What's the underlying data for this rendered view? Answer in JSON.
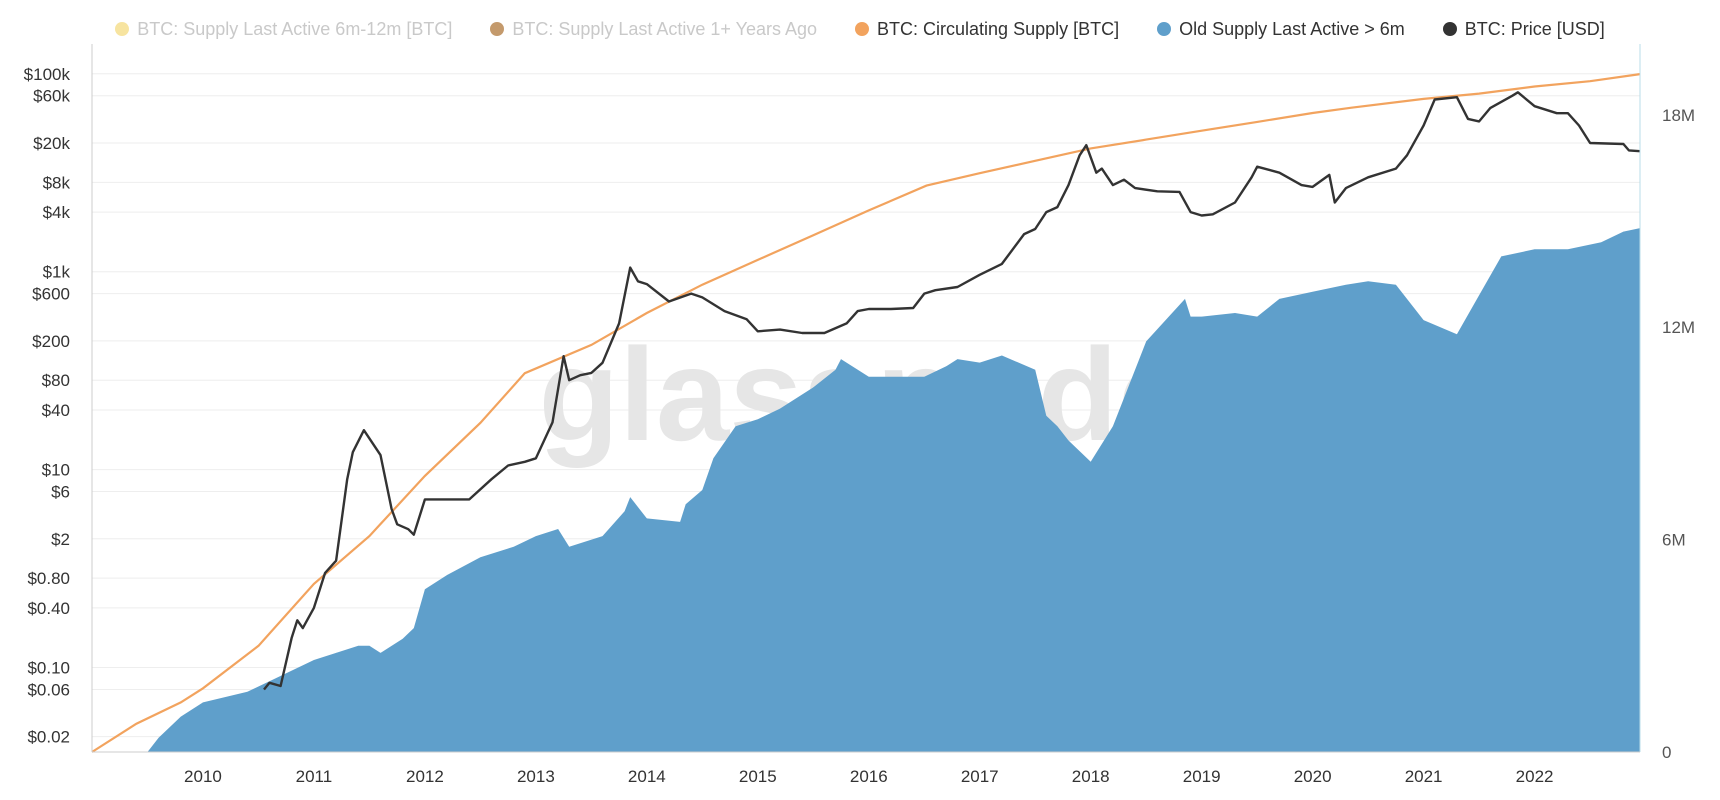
{
  "legend": [
    {
      "label": "BTC: Supply Last Active 6m-12m [BTC]",
      "color": "#f7e4a0",
      "enabled": false
    },
    {
      "label": "BTC: Supply Last Active 1+ Years Ago",
      "color": "#c49a6c",
      "enabled": false
    },
    {
      "label": "BTC: Circulating Supply [BTC]",
      "color": "#f2a35e",
      "enabled": true
    },
    {
      "label": "Old Supply Last Active > 6m",
      "color": "#5f9fcb",
      "enabled": true
    },
    {
      "label": "BTC: Price [USD]",
      "color": "#333333",
      "enabled": true
    }
  ],
  "watermark": "glassnode",
  "chart_data": {
    "type": "line",
    "grid": true,
    "legend_position": "top-center",
    "x_axis": {
      "min": 2009.0,
      "max": 2022.95,
      "ticks": [
        "2010",
        "2011",
        "2012",
        "2013",
        "2014",
        "2015",
        "2016",
        "2017",
        "2018",
        "2019",
        "2020",
        "2021",
        "2022"
      ]
    },
    "y_axis_left": {
      "scale": "log",
      "min": 0.014,
      "max": 200000,
      "ticks": [
        {
          "value": 0.02,
          "label": "$0.02"
        },
        {
          "value": 0.06,
          "label": "$0.06"
        },
        {
          "value": 0.1,
          "label": "$0.10"
        },
        {
          "value": 0.4,
          "label": "$0.40"
        },
        {
          "value": 0.8,
          "label": "$0.80"
        },
        {
          "value": 2,
          "label": "$2"
        },
        {
          "value": 6,
          "label": "$6"
        },
        {
          "value": 10,
          "label": "$10"
        },
        {
          "value": 40,
          "label": "$40"
        },
        {
          "value": 80,
          "label": "$80"
        },
        {
          "value": 200,
          "label": "$200"
        },
        {
          "value": 600,
          "label": "$600"
        },
        {
          "value": 1000,
          "label": "$1k"
        },
        {
          "value": 4000,
          "label": "$4k"
        },
        {
          "value": 8000,
          "label": "$8k"
        },
        {
          "value": 20000,
          "label": "$20k"
        },
        {
          "value": 60000,
          "label": "$60k"
        },
        {
          "value": 100000,
          "label": "$100k"
        }
      ]
    },
    "y_axis_right": {
      "scale": "linear",
      "min": 0,
      "max": 20000000,
      "ticks": [
        {
          "value": 0,
          "label": "0"
        },
        {
          "value": 6000000,
          "label": "6M"
        },
        {
          "value": 12000000,
          "label": "12M"
        },
        {
          "value": 18000000,
          "label": "18M"
        }
      ]
    },
    "series": [
      {
        "name": "Old Supply Last Active > 6m",
        "type": "area",
        "axis": "right",
        "color": "#5f9fcb",
        "x": [
          2009.0,
          2009.5,
          2009.6,
          2009.8,
          2010.0,
          2010.4,
          2010.8,
          2011.0,
          2011.2,
          2011.4,
          2011.5,
          2011.6,
          2011.8,
          2011.9,
          2012.0,
          2012.2,
          2012.5,
          2012.8,
          2013.0,
          2013.2,
          2013.3,
          2013.6,
          2013.8,
          2013.85,
          2014.0,
          2014.3,
          2014.35,
          2014.5,
          2014.6,
          2014.8,
          2015.0,
          2015.2,
          2015.5,
          2015.7,
          2015.75,
          2016.0,
          2016.3,
          2016.5,
          2016.7,
          2016.8,
          2017.0,
          2017.2,
          2017.5,
          2017.6,
          2017.7,
          2017.8,
          2018.0,
          2018.2,
          2018.5,
          2018.85,
          2018.9,
          2019.0,
          2019.3,
          2019.5,
          2019.7,
          2020.0,
          2020.3,
          2020.5,
          2020.75,
          2021.0,
          2021.3,
          2021.5,
          2021.7,
          2022.0,
          2022.3,
          2022.6,
          2022.8,
          2022.95
        ],
        "y": [
          0,
          0,
          400000,
          1000000,
          1400000,
          1700000,
          2300000,
          2600000,
          2800000,
          3000000,
          3000000,
          2800000,
          3200000,
          3500000,
          4600000,
          5000000,
          5500000,
          5800000,
          6100000,
          6300000,
          5800000,
          6100000,
          6800000,
          7200000,
          6600000,
          6500000,
          7000000,
          7400000,
          8300000,
          9200000,
          9400000,
          9700000,
          10300000,
          10800000,
          11100000,
          10600000,
          10600000,
          10600000,
          10900000,
          11100000,
          11000000,
          11200000,
          10800000,
          9500000,
          9200000,
          8800000,
          8200000,
          9200000,
          11600000,
          12800000,
          12300000,
          12300000,
          12400000,
          12300000,
          12800000,
          13000000,
          13200000,
          13300000,
          13200000,
          12200000,
          11800000,
          12900000,
          14000000,
          14200000,
          14200000,
          14400000,
          14700000,
          14800000
        ]
      },
      {
        "name": "BTC: Circulating Supply [BTC]",
        "type": "line",
        "axis": "right",
        "color": "#f2a35e",
        "x": [
          2009.0,
          2009.4,
          2009.8,
          2010.0,
          2010.5,
          2011.0,
          2011.5,
          2012.0,
          2012.5,
          2012.9,
          2013.5,
          2014.0,
          2014.5,
          2015.0,
          2015.5,
          2016.0,
          2016.52,
          2017.0,
          2017.5,
          2018.0,
          2018.5,
          2019.0,
          2019.5,
          2020.0,
          2020.35,
          2021.0,
          2021.5,
          2022.0,
          2022.5,
          2022.95
        ],
        "y": [
          0,
          800000,
          1400000,
          1800000,
          3000000,
          4750000,
          6100000,
          7800000,
          9300000,
          10700000,
          11500000,
          12400000,
          13200000,
          13900000,
          14600000,
          15300000,
          16000000,
          16350000,
          16700000,
          17050000,
          17300000,
          17550000,
          17800000,
          18050000,
          18200000,
          18450000,
          18600000,
          18800000,
          18950000,
          19150000
        ]
      },
      {
        "name": "BTC: Price [USD]",
        "type": "line",
        "axis": "left",
        "color": "#333333",
        "x": [
          2010.55,
          2010.6,
          2010.7,
          2010.8,
          2010.85,
          2010.9,
          2011.0,
          2011.1,
          2011.2,
          2011.3,
          2011.35,
          2011.45,
          2011.6,
          2011.7,
          2011.75,
          2011.85,
          2011.9,
          2012.0,
          2012.2,
          2012.4,
          2012.6,
          2012.75,
          2012.9,
          2013.0,
          2013.15,
          2013.25,
          2013.3,
          2013.4,
          2013.5,
          2013.6,
          2013.75,
          2013.85,
          2013.92,
          2014.0,
          2014.2,
          2014.4,
          2014.5,
          2014.7,
          2014.9,
          2015.0,
          2015.2,
          2015.4,
          2015.6,
          2015.8,
          2015.9,
          2016.0,
          2016.2,
          2016.4,
          2016.5,
          2016.6,
          2016.8,
          2017.0,
          2017.2,
          2017.4,
          2017.5,
          2017.6,
          2017.7,
          2017.8,
          2017.9,
          2017.96,
          2018.05,
          2018.1,
          2018.2,
          2018.3,
          2018.4,
          2018.6,
          2018.8,
          2018.9,
          2019.0,
          2019.1,
          2019.3,
          2019.45,
          2019.5,
          2019.7,
          2019.9,
          2020.0,
          2020.15,
          2020.2,
          2020.3,
          2020.5,
          2020.75,
          2020.85,
          2021.0,
          2021.1,
          2021.3,
          2021.4,
          2021.5,
          2021.6,
          2021.8,
          2021.85,
          2022.0,
          2022.2,
          2022.3,
          2022.4,
          2022.5,
          2022.8,
          2022.85,
          2022.95
        ],
        "y": [
          0.06,
          0.07,
          0.065,
          0.2,
          0.3,
          0.25,
          0.4,
          0.9,
          1.2,
          8,
          15,
          25,
          14,
          4,
          2.8,
          2.5,
          2.2,
          5,
          5,
          5,
          8,
          11,
          12,
          13,
          30,
          140,
          80,
          90,
          95,
          120,
          300,
          1100,
          800,
          750,
          500,
          600,
          550,
          400,
          330,
          250,
          260,
          240,
          240,
          300,
          400,
          420,
          420,
          430,
          600,
          650,
          700,
          930,
          1200,
          2400,
          2700,
          4000,
          4500,
          7500,
          15000,
          19000,
          10000,
          11000,
          7500,
          8500,
          7000,
          6500,
          6400,
          4000,
          3700,
          3800,
          5000,
          9000,
          11500,
          10000,
          7500,
          7200,
          9500,
          5000,
          7000,
          9000,
          11000,
          15000,
          30000,
          55000,
          58000,
          35000,
          33000,
          45000,
          60000,
          65000,
          47000,
          40000,
          40000,
          30000,
          20000,
          19500,
          16800,
          16500
        ]
      }
    ]
  }
}
